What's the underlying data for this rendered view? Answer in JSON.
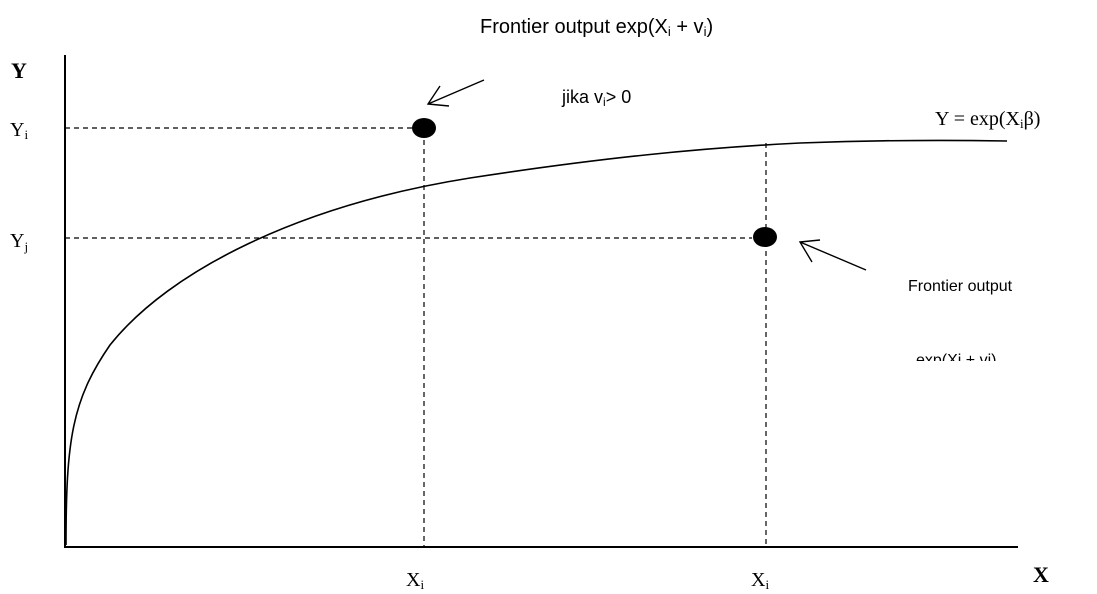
{
  "top_label": {
    "prefix": "Frontier output exp(X",
    "sub": "i",
    "mid": "  + v",
    "sub2": "i",
    "suffix": ")"
  },
  "y_axis_label": "Y",
  "x_axis_label": "X",
  "yi_label": {
    "base": "Y",
    "sub": "i"
  },
  "yj_label": {
    "base": "Y",
    "sub": "j"
  },
  "xi_label": {
    "base": "X",
    "sub": "i"
  },
  "xj_label": {
    "base": "X",
    "sub": "i"
  },
  "condition_label": {
    "prefix": "jika v",
    "sub": "i",
    "suffix": "> 0"
  },
  "curve_label": {
    "prefix": "Y = exp(X",
    "sub": "i",
    "suffix": "β)"
  },
  "right_label_line1": "Frontier output",
  "right_label_line2": "exp(Xi  + vi)",
  "colors": {
    "ink": "#000000",
    "background": "#ffffff"
  }
}
